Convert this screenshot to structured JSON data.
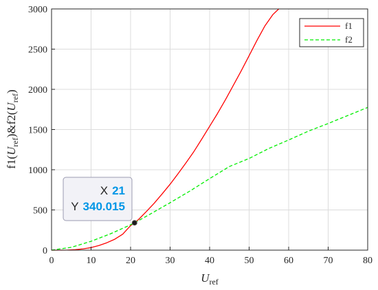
{
  "chart_data": {
    "type": "line",
    "xlabel": {
      "main": "U",
      "sub": "ref"
    },
    "ylabel": {
      "p1": "f1(",
      "u1": "U",
      "sub1": "ref",
      "p2": ")&f2(",
      "u2": "U",
      "sub2": "ref",
      "p3": ")"
    },
    "xlim": [
      0,
      80
    ],
    "ylim": [
      0,
      3000
    ],
    "xticks": [
      "0",
      "10",
      "20",
      "30",
      "40",
      "50",
      "60",
      "70",
      "80"
    ],
    "yticks": [
      "0",
      "500",
      "1000",
      "1500",
      "2000",
      "2500",
      "3000"
    ],
    "grid": true,
    "legend_position": "top-right",
    "series": [
      {
        "name": "f1",
        "color": "#ff0000",
        "style": "solid",
        "x": [
          0,
          2,
          4,
          6,
          8,
          10,
          12,
          14,
          16,
          18,
          20,
          21,
          22,
          24,
          26,
          28,
          30,
          32,
          34,
          36,
          38,
          40,
          42,
          44,
          46,
          48,
          50,
          52,
          54,
          56,
          57.5
        ],
        "y": [
          0,
          0,
          1,
          6,
          16,
          32,
          58,
          92,
          136,
          198,
          305,
          340,
          380,
          480,
          585,
          700,
          820,
          950,
          1085,
          1225,
          1380,
          1540,
          1700,
          1870,
          2050,
          2230,
          2420,
          2610,
          2790,
          2930,
          3000
        ]
      },
      {
        "name": "f2",
        "color": "#00ee00",
        "style": "dashed",
        "x": [
          0,
          5,
          10,
          15,
          20,
          21,
          25,
          30,
          35,
          40,
          45,
          50,
          55,
          60,
          65,
          70,
          75,
          80
        ],
        "y": [
          0,
          35,
          110,
          205,
          315,
          340,
          450,
          590,
          735,
          890,
          1040,
          1140,
          1265,
          1370,
          1480,
          1575,
          1675,
          1775
        ]
      }
    ],
    "datatip": {
      "x_label": "X",
      "x_value": "21",
      "y_label": "Y",
      "y_value": "340.015",
      "x": 21,
      "y": 340.015
    },
    "colors": {
      "datatip_value": "#0096e6",
      "grid": "#dcdcdc",
      "axis": "#262626"
    }
  }
}
